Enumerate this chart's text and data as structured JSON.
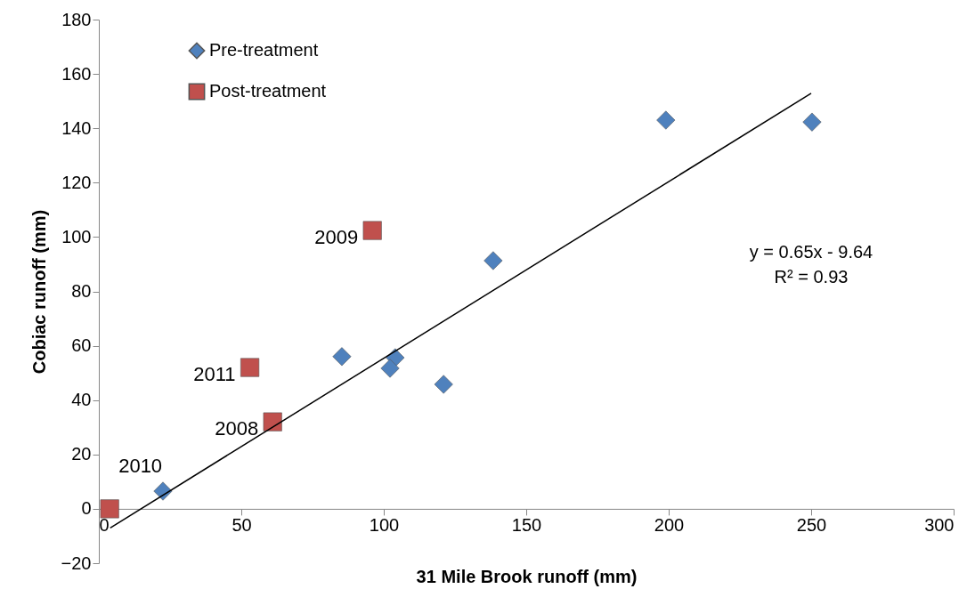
{
  "chart_data": {
    "type": "scatter",
    "xlabel": "31 Mile Brook runoff (mm)",
    "ylabel": "Cobiac runoff (mm)",
    "xlim": [
      0,
      300
    ],
    "xticks": [
      0,
      50,
      100,
      150,
      200,
      250,
      300
    ],
    "ylim": [
      -20,
      180
    ],
    "yticks": [
      -20,
      0,
      20,
      40,
      60,
      80,
      100,
      120,
      140,
      160,
      180
    ],
    "grid": false,
    "legend": "top left",
    "series": [
      {
        "name": "Pre-treatment",
        "color": "#4f81bd",
        "marker": "diamond",
        "x": [
          22.5,
          85.3,
          104,
          102.2,
          121,
          138.4,
          199,
          250.3
        ],
        "values": [
          6.5,
          56,
          55.6,
          51.7,
          45.8,
          91.3,
          143,
          142.3
        ]
      },
      {
        "name": "Post-treatment",
        "color": "#c0504d",
        "marker": "square",
        "x": [
          3.8,
          53,
          61,
          96
        ],
        "values": [
          0,
          52,
          32,
          102.4
        ]
      },
      {
        "type": "line",
        "color": "#000000",
        "marker": "none",
        "x": [
          4,
          250
        ],
        "values": [
          -7,
          152.9
        ]
      }
    ],
    "annotations": [
      {
        "text": "2009",
        "x": 96,
        "y": 102.4
      },
      {
        "text": "2011",
        "x": 53,
        "y": 52
      },
      {
        "text": "2008",
        "x": 61,
        "y": 32
      },
      {
        "text": "2010",
        "x": 3.8,
        "y": 0
      },
      "y = 0.65x - 9.64",
      "R² = 0.93"
    ]
  }
}
